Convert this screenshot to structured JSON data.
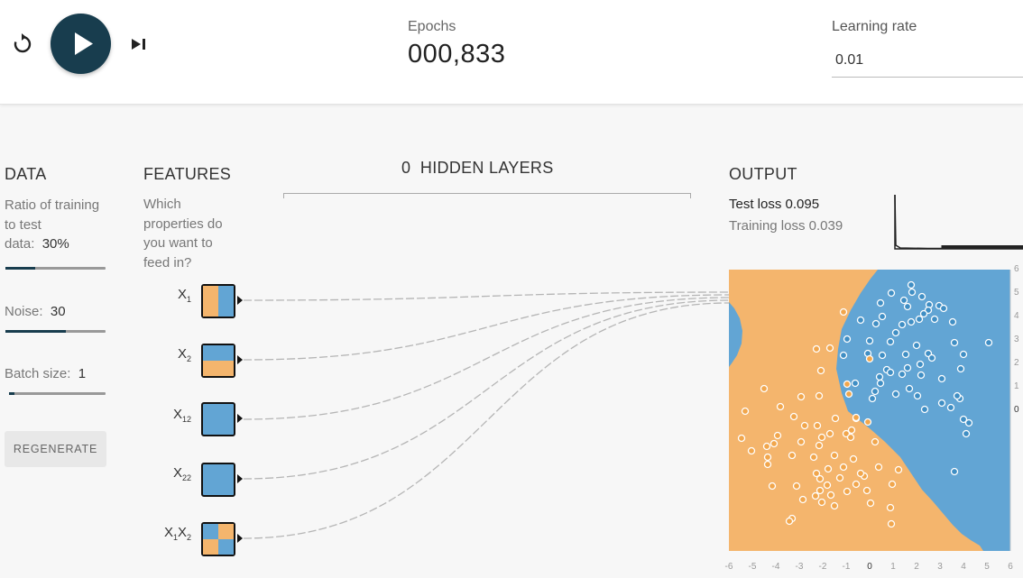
{
  "toolbar": {
    "epoch_label": "Epochs",
    "epoch_value": "000,833",
    "learning_rate_label": "Learning rate",
    "learning_rate_value": "0.01"
  },
  "data_panel": {
    "title": "DATA",
    "ratio_text_1": "Ratio of training",
    "ratio_text_2": "to test",
    "ratio_text_3": "data:",
    "ratio_value": "30%",
    "ratio_level": 0.3,
    "noise_label": "Noise:",
    "noise_value": "30",
    "noise_level": 0.6,
    "batch_label": "Batch size:",
    "batch_value": "1",
    "batch_level": 0.03,
    "regenerate_label": "REGENERATE"
  },
  "features_panel": {
    "title": "FEATURES",
    "question_1": "Which",
    "question_2": "properties do",
    "question_3": "you want to",
    "question_4": "feed in?",
    "features": [
      {
        "base": "X",
        "sub": "1"
      },
      {
        "base": "X",
        "sub": "2"
      },
      {
        "base": "X",
        "sub": "1",
        "sup": "2"
      },
      {
        "base": "X",
        "sub": "2",
        "sup": "2"
      },
      {
        "base": "X",
        "sub": "1",
        "base2": "X",
        "sub2": "2"
      }
    ]
  },
  "hidden_layers": {
    "count": "0",
    "label": "HIDDEN LAYERS"
  },
  "output_panel": {
    "title": "OUTPUT",
    "test_loss_label": "Test loss",
    "test_loss_value": "0.095",
    "train_loss_label": "Training loss",
    "train_loss_value": "0.039",
    "x_ticks": [
      "-6",
      "-5",
      "-4",
      "-3",
      "-2",
      "-1",
      "0",
      "1",
      "2",
      "3",
      "4",
      "5",
      "6"
    ],
    "y_ticks": [
      "6",
      "5",
      "4",
      "3",
      "2",
      "1",
      "0"
    ]
  },
  "colors": {
    "orange": "#f4b56d",
    "blue": "#62a5d4",
    "dark_navy": "#183d4e"
  }
}
